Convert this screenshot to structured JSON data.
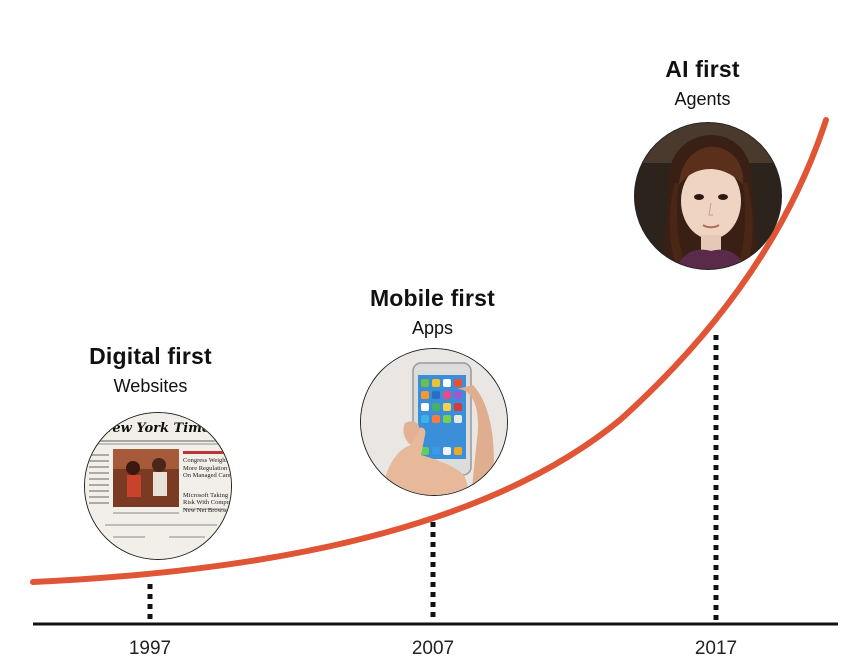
{
  "eras": [
    {
      "title": "Digital first",
      "subtitle": "Websites",
      "year": "1997",
      "image": "newspaper-website-photo"
    },
    {
      "title": "Mobile first",
      "subtitle": "Apps",
      "year": "2007",
      "image": "smartphone-in-hand-photo"
    },
    {
      "title": "AI first",
      "subtitle": "Agents",
      "year": "2017",
      "image": "android-robot-face-photo"
    }
  ],
  "newspaper": {
    "masthead": "New York Times",
    "headlines": [
      "Congress Weighs",
      "More Regulation",
      "On Managed Care",
      "Microsoft Taking",
      "Risk With Compu",
      "New Net Browser"
    ]
  },
  "colors": {
    "curve": "#e05535",
    "axis": "#111111",
    "text": "#111111"
  }
}
